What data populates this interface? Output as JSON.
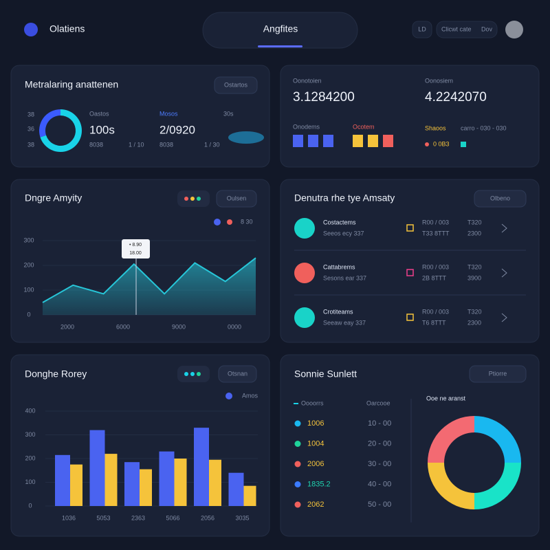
{
  "header": {
    "logo": "Olatiens",
    "nav_title": "Angfites",
    "nav_button": "LD",
    "search": "Clicwt cate",
    "search_icon": "Dov"
  },
  "stats_panel": {
    "title": "Metralaring anattenen",
    "button": "Ostartos",
    "left_labels": [
      "38",
      "36",
      "38"
    ],
    "donut": {
      "type": "pie",
      "values": [
        70,
        30
      ],
      "colors": [
        "#19d3e8",
        "#3b5bff"
      ]
    },
    "stat1": {
      "label": "Oastos",
      "value": "100s",
      "sub1": "8038",
      "sub2": "1 / 10"
    },
    "stat2": {
      "label": "Mosos",
      "value": "2/0920",
      "sub1": "8038",
      "sub2": "1 / 30"
    },
    "stat3": {
      "label": "30s"
    }
  },
  "totals_panel": {
    "left": {
      "label": "Oonotoien",
      "value": "3.1284200",
      "group": "Onodems"
    },
    "right": {
      "label": "Oonosiem",
      "value": "4.2242070",
      "group": "Ocotem",
      "legend": "Shaoos",
      "legend_sub": "carro - 030 - 030",
      "foot": "0 0B3"
    }
  },
  "line_panel": {
    "title": "Dngre Amyity",
    "button": "Oulsen",
    "legend": "8 30",
    "tooltip": [
      "• 8.90",
      "18.00"
    ],
    "chart_data": {
      "type": "line",
      "x_labels": [
        "2000",
        "6000",
        "9000",
        "0000"
      ],
      "values": [
        50,
        120,
        85,
        205,
        85,
        210,
        135,
        230
      ],
      "color": "#27c6d8",
      "ylim": [
        0,
        300
      ],
      "yticks": [
        0,
        100,
        200,
        300
      ]
    }
  },
  "list_panel": {
    "title": "Denutra rhe tye Amsaty",
    "button": "Olbeno",
    "rows": [
      {
        "name": "Costactems",
        "sub": "Seeos ecy 337",
        "a": "R00 / 003",
        "b": "T33 8TTT",
        "c": "T320",
        "d": "2300",
        "color": "#19d3c8"
      },
      {
        "name": "Cattabrems",
        "sub": "Sesons ear 337",
        "a": "R00 / 003",
        "b": "2B 8TTT",
        "c": "T320",
        "d": "3900",
        "color": "#f0605c"
      },
      {
        "name": "Crotiteams",
        "sub": "Seeaw eay 337",
        "a": "R00 / 003",
        "b": "T6 8TTT",
        "c": "T320",
        "d": "2300",
        "color": "#19d3c8"
      }
    ]
  },
  "bar_panel": {
    "title": "Donghe Rorey",
    "button": "Otsnan",
    "chart_data": {
      "type": "bar",
      "categories": [
        "1036",
        "5053",
        "2363",
        "5066",
        "2056",
        "3035"
      ],
      "ylim": [
        0,
        400
      ],
      "yticks": [
        0,
        100,
        200,
        300,
        400
      ],
      "series": [
        {
          "name": "Amos",
          "color": "#4a63f0",
          "values": [
            215,
            320,
            185,
            230,
            330,
            140
          ]
        },
        {
          "color": "#f5c33b",
          "values": [
            175,
            220,
            155,
            200,
            195,
            85
          ]
        }
      ]
    }
  },
  "donut_panel": {
    "title": "Sonnie Sunlett",
    "button": "Ptiorre",
    "col1": "Oooorrs",
    "col2": "Oarcooe",
    "chart_title": "Ooe ne aranst",
    "rows": [
      {
        "value": "1006",
        "range": "10 - 00",
        "color": "#19b8f0"
      },
      {
        "value": "1004",
        "range": "20 - 00",
        "color": "#1fd39a"
      },
      {
        "value": "2006",
        "range": "30 - 00",
        "color": "#f0605c"
      },
      {
        "value": "1835.2",
        "range": "40 - 00",
        "color": "#3b7bff"
      },
      {
        "value": "2062",
        "range": "50 - 00",
        "color": "#f0605c"
      }
    ],
    "chart_data": {
      "type": "pie",
      "values": [
        25,
        25,
        25,
        25
      ],
      "colors": [
        "#19b8f0",
        "#19e3c8",
        "#f5c33b",
        "#f36a72"
      ]
    }
  }
}
